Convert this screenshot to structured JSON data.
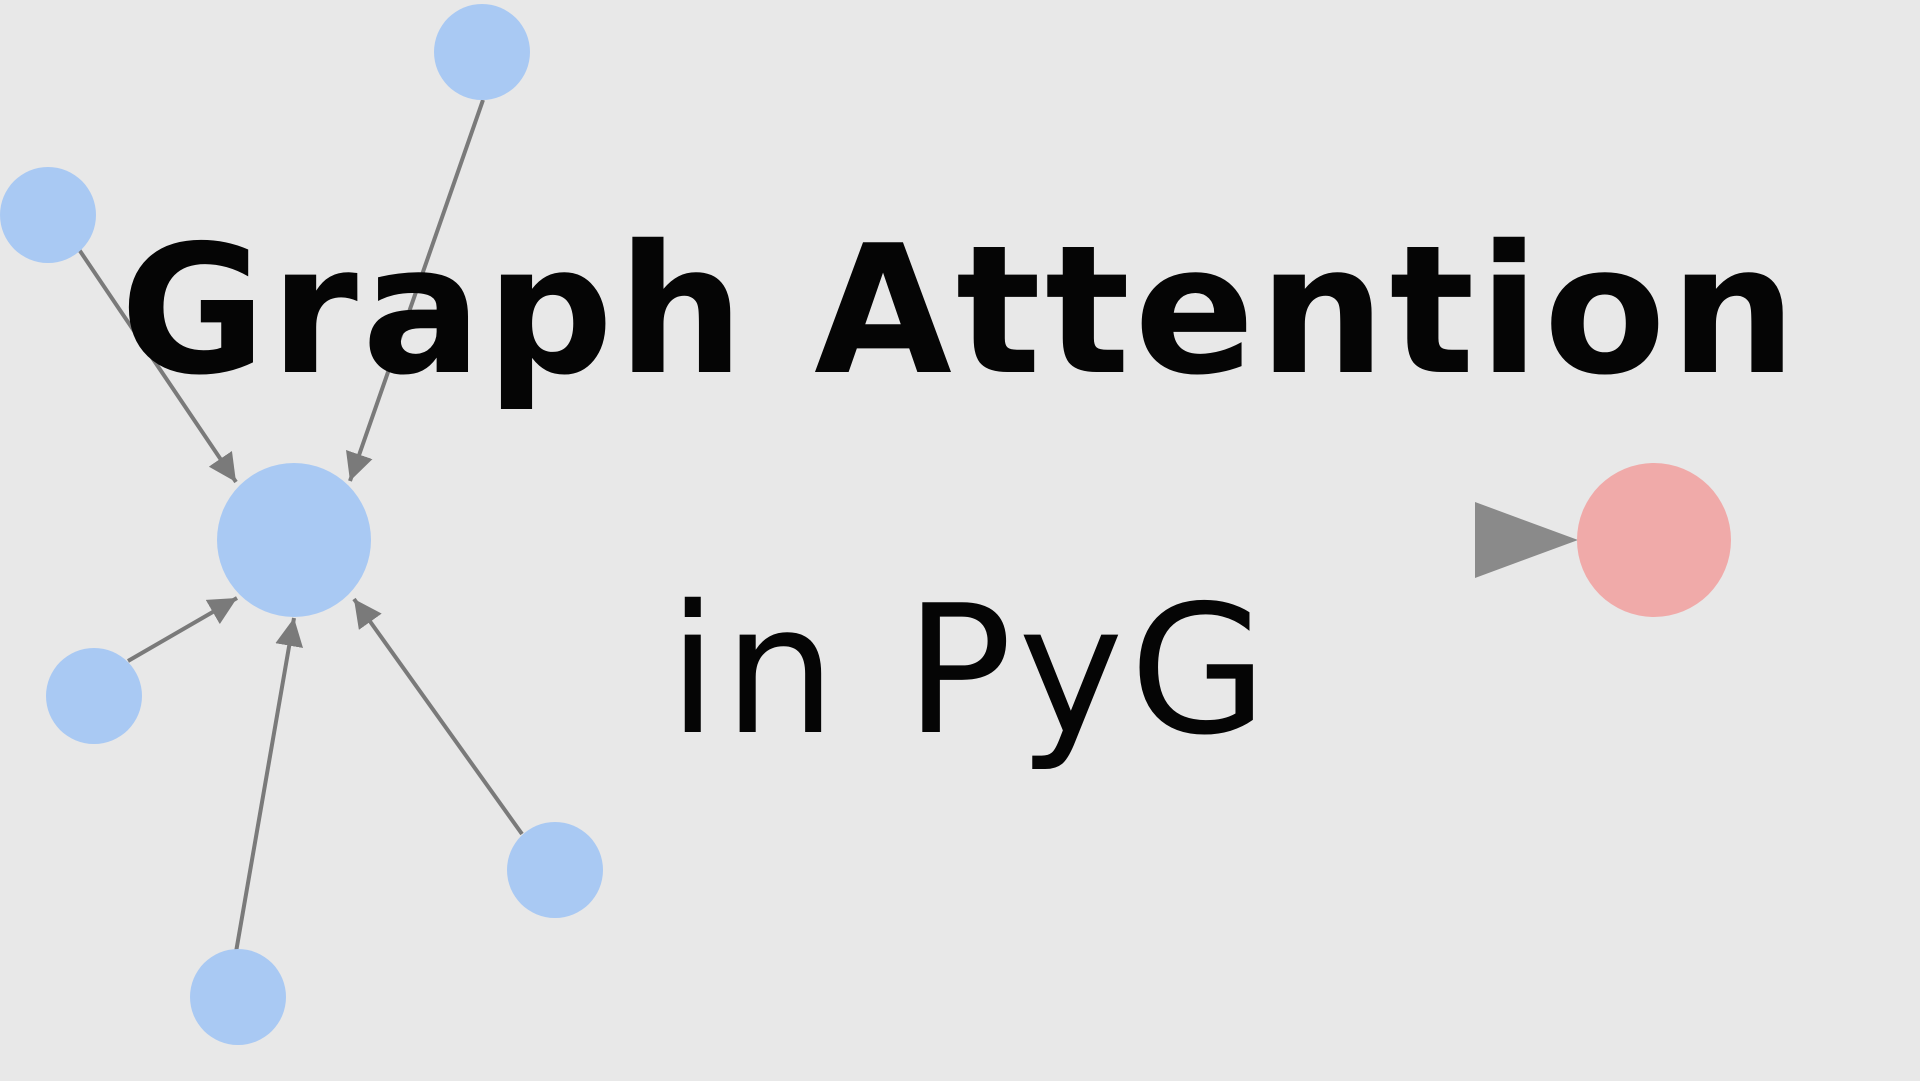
{
  "title": "Graph Attention",
  "subtitle": "in PyG",
  "colors": {
    "background": "#e8e8e8",
    "source_node": "#a9c9f3",
    "target_node": "#f0aaa9",
    "edge": "#7a7a7a",
    "text": "#050505"
  }
}
